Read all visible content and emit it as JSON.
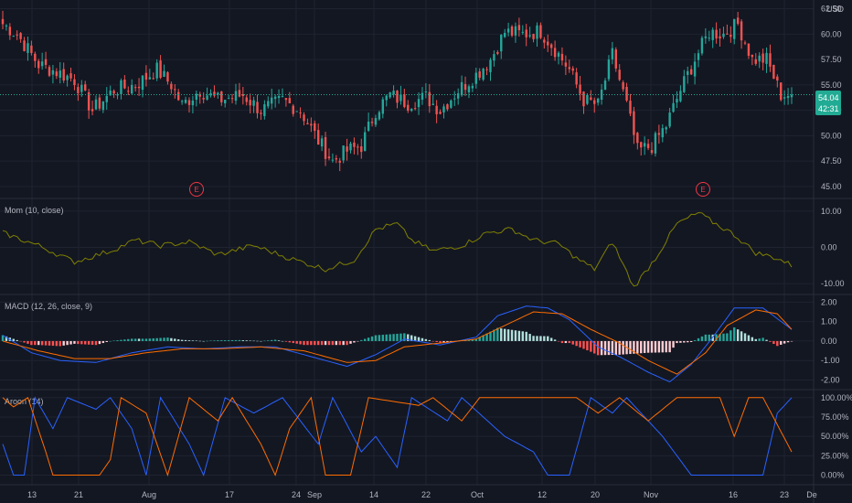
{
  "currency": "USD",
  "price_badge": {
    "value": "54.04",
    "countdown": "42:31",
    "color": "#22ab94"
  },
  "colors": {
    "background": "#131722",
    "grid": "#1f2330",
    "text": "#b2b5be",
    "up": "#26a69a",
    "down": "#ef5350",
    "momentum": "#808000",
    "macd_line": "#2962ff",
    "signal_line": "#ff6d00",
    "hist_up_strong": "#26a69a",
    "hist_up_weak": "#b2dfdb",
    "hist_down_strong": "#ff5252",
    "hist_down_weak": "#ffcdd2",
    "aroon_up": "#ff6d00",
    "aroon_down": "#2962ff",
    "earnings": "#f23645"
  },
  "x_axis": {
    "labels": [
      "13",
      "21",
      "Aug",
      "17",
      "24",
      "Sep",
      "14",
      "22",
      "Oct",
      "12",
      "20",
      "Nov",
      "16",
      "23",
      "De"
    ]
  },
  "earnings_markers": [
    {
      "label": "E"
    },
    {
      "label": "E"
    }
  ],
  "chart_data": [
    {
      "type": "candlestick",
      "name": "price",
      "y_ticks": [
        "62.50",
        "60.00",
        "57.50",
        "55.00",
        "52.50",
        "50.00",
        "47.50",
        "45.00"
      ],
      "ylim": [
        44.0,
        63.0
      ],
      "last_close": 54.04,
      "anchors": [
        [
          0,
          61.0
        ],
        [
          4,
          60.0
        ],
        [
          10,
          57.0
        ],
        [
          15,
          56.3
        ],
        [
          20,
          55.5
        ],
        [
          25,
          52.5
        ],
        [
          31,
          54.5
        ],
        [
          37,
          55.0
        ],
        [
          43,
          56.5
        ],
        [
          47,
          55.0
        ],
        [
          50,
          53.0
        ],
        [
          55,
          54.5
        ],
        [
          60,
          53.5
        ],
        [
          67,
          54.0
        ],
        [
          72,
          52.5
        ],
        [
          78,
          53.5
        ],
        [
          83,
          52.5
        ],
        [
          88,
          49.5
        ],
        [
          92,
          47.5
        ],
        [
          96,
          48.5
        ],
        [
          100,
          49.0
        ],
        [
          104,
          52.5
        ],
        [
          108,
          54.0
        ],
        [
          113,
          53.2
        ],
        [
          118,
          53.8
        ],
        [
          122,
          52.5
        ],
        [
          127,
          54.5
        ],
        [
          132,
          56.0
        ],
        [
          136,
          57.5
        ],
        [
          140,
          60.2
        ],
        [
          145,
          60.0
        ],
        [
          150,
          60.3
        ],
        [
          154,
          58.5
        ],
        [
          158,
          56.5
        ],
        [
          162,
          53.5
        ],
        [
          166,
          53.0
        ],
        [
          170,
          58.0
        ],
        [
          174,
          53.0
        ],
        [
          177,
          48.5
        ],
        [
          181,
          49.0
        ],
        [
          185,
          51.0
        ],
        [
          189,
          54.5
        ],
        [
          193,
          57.5
        ],
        [
          197,
          60.2
        ],
        [
          201,
          60.0
        ],
        [
          205,
          61.0
        ],
        [
          209,
          57.5
        ],
        [
          213,
          57.5
        ],
        [
          217,
          54.04
        ]
      ]
    },
    {
      "type": "line",
      "name": "Mom (10, close)",
      "y_ticks": [
        "10.00",
        "0.00",
        "-10.00"
      ],
      "ylim": [
        -12.5,
        13.0
      ],
      "anchors": [
        [
          0,
          4.0
        ],
        [
          10,
          0.5
        ],
        [
          20,
          -4.0
        ],
        [
          30,
          -1.0
        ],
        [
          37,
          2.0
        ],
        [
          44,
          0.5
        ],
        [
          52,
          1.5
        ],
        [
          60,
          -2.0
        ],
        [
          70,
          0.5
        ],
        [
          80,
          -3.0
        ],
        [
          90,
          -6.0
        ],
        [
          98,
          -3.5
        ],
        [
          104,
          5.0
        ],
        [
          110,
          6.5
        ],
        [
          114,
          2.0
        ],
        [
          120,
          -1.0
        ],
        [
          128,
          0.5
        ],
        [
          135,
          4.0
        ],
        [
          142,
          5.0
        ],
        [
          148,
          2.0
        ],
        [
          155,
          1.0
        ],
        [
          160,
          -3.0
        ],
        [
          165,
          -6.0
        ],
        [
          170,
          1.5
        ],
        [
          176,
          -11.0
        ],
        [
          182,
          -3.0
        ],
        [
          188,
          6.5
        ],
        [
          194,
          9.5
        ],
        [
          198,
          7.0
        ],
        [
          204,
          3.5
        ],
        [
          210,
          -1.5
        ],
        [
          216,
          -3.0
        ],
        [
          220,
          -5.0
        ]
      ]
    },
    {
      "type": "line+histogram",
      "name": "MACD (12, 26, close, 9)",
      "y_ticks": [
        "2.00",
        "1.00",
        "0.00",
        "-1.00",
        "-2.00"
      ],
      "ylim": [
        -2.4,
        2.3
      ],
      "macd_anchors": [
        [
          0,
          0.3
        ],
        [
          8,
          -0.6
        ],
        [
          16,
          -1.0
        ],
        [
          26,
          -1.1
        ],
        [
          36,
          -0.6
        ],
        [
          46,
          -0.3
        ],
        [
          56,
          -0.4
        ],
        [
          66,
          -0.3
        ],
        [
          76,
          -0.3
        ],
        [
          86,
          -0.8
        ],
        [
          96,
          -1.3
        ],
        [
          104,
          -0.7
        ],
        [
          112,
          0.1
        ],
        [
          122,
          -0.2
        ],
        [
          132,
          0.2
        ],
        [
          138,
          1.3
        ],
        [
          146,
          1.8
        ],
        [
          152,
          1.7
        ],
        [
          158,
          1.1
        ],
        [
          166,
          -0.3
        ],
        [
          172,
          -0.8
        ],
        [
          180,
          -1.6
        ],
        [
          186,
          -2.1
        ],
        [
          192,
          -1.2
        ],
        [
          198,
          0.2
        ],
        [
          204,
          1.7
        ],
        [
          212,
          1.7
        ],
        [
          220,
          0.6
        ]
      ],
      "signal_anchors": [
        [
          0,
          0.0
        ],
        [
          10,
          -0.5
        ],
        [
          20,
          -0.9
        ],
        [
          30,
          -0.9
        ],
        [
          40,
          -0.6
        ],
        [
          50,
          -0.4
        ],
        [
          60,
          -0.4
        ],
        [
          72,
          -0.3
        ],
        [
          84,
          -0.5
        ],
        [
          96,
          -1.1
        ],
        [
          104,
          -1.0
        ],
        [
          112,
          -0.3
        ],
        [
          122,
          -0.1
        ],
        [
          132,
          0.1
        ],
        [
          140,
          0.8
        ],
        [
          148,
          1.5
        ],
        [
          156,
          1.4
        ],
        [
          164,
          0.6
        ],
        [
          172,
          -0.1
        ],
        [
          180,
          -1.0
        ],
        [
          188,
          -1.7
        ],
        [
          196,
          -0.6
        ],
        [
          202,
          0.8
        ],
        [
          210,
          1.6
        ],
        [
          216,
          1.4
        ],
        [
          220,
          0.6
        ]
      ]
    },
    {
      "type": "line",
      "name": "Aroon (14)",
      "y_ticks": [
        "100.00%",
        "75.00%",
        "50.00%",
        "25.00%",
        "0.00%"
      ],
      "ylim": [
        -10,
        108
      ],
      "series": [
        {
          "name": "Aroon Up",
          "anchors": [
            [
              0,
              100
            ],
            [
              3,
              88
            ],
            [
              7,
              100
            ],
            [
              12,
              30
            ],
            [
              14,
              0
            ],
            [
              20,
              0
            ],
            [
              24,
              0
            ],
            [
              27,
              0
            ],
            [
              30,
              20
            ],
            [
              33,
              100
            ],
            [
              40,
              80
            ],
            [
              46,
              0
            ],
            [
              52,
              100
            ],
            [
              60,
              70
            ],
            [
              64,
              100
            ],
            [
              72,
              40
            ],
            [
              76,
              0
            ],
            [
              80,
              60
            ],
            [
              86,
              100
            ],
            [
              90,
              0
            ],
            [
              97,
              0
            ],
            [
              102,
              100
            ],
            [
              116,
              90
            ],
            [
              120,
              100
            ],
            [
              128,
              70
            ],
            [
              133,
              100
            ],
            [
              146,
              100
            ],
            [
              160,
              100
            ],
            [
              166,
              80
            ],
            [
              172,
              100
            ],
            [
              180,
              70
            ],
            [
              188,
              100
            ],
            [
              200,
              100
            ],
            [
              204,
              50
            ],
            [
              208,
              100
            ],
            [
              212,
              100
            ],
            [
              220,
              30
            ]
          ]
        },
        {
          "name": "Aroon Down",
          "anchors": [
            [
              0,
              40
            ],
            [
              3,
              0
            ],
            [
              6,
              0
            ],
            [
              9,
              100
            ],
            [
              14,
              60
            ],
            [
              18,
              100
            ],
            [
              26,
              85
            ],
            [
              30,
              100
            ],
            [
              36,
              60
            ],
            [
              40,
              0
            ],
            [
              44,
              100
            ],
            [
              52,
              40
            ],
            [
              56,
              0
            ],
            [
              62,
              100
            ],
            [
              70,
              80
            ],
            [
              78,
              100
            ],
            [
              88,
              40
            ],
            [
              92,
              100
            ],
            [
              100,
              30
            ],
            [
              104,
              50
            ],
            [
              110,
              10
            ],
            [
              114,
              100
            ],
            [
              124,
              70
            ],
            [
              128,
              100
            ],
            [
              140,
              50
            ],
            [
              148,
              30
            ],
            [
              152,
              0
            ],
            [
              158,
              0
            ],
            [
              164,
              100
            ],
            [
              170,
              80
            ],
            [
              174,
              100
            ],
            [
              184,
              50
            ],
            [
              192,
              0
            ],
            [
              208,
              0
            ],
            [
              212,
              0
            ],
            [
              216,
              80
            ],
            [
              220,
              100
            ]
          ]
        }
      ]
    }
  ]
}
